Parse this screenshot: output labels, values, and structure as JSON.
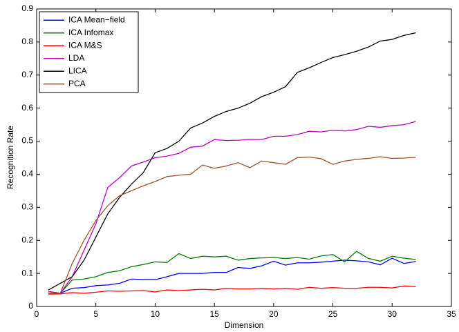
{
  "chart_data": {
    "type": "line",
    "xlabel": "Dimension",
    "ylabel": "Recognition Rate",
    "x": [
      1,
      2,
      3,
      4,
      5,
      6,
      7,
      8,
      9,
      10,
      11,
      12,
      13,
      14,
      15,
      16,
      17,
      18,
      19,
      20,
      21,
      22,
      23,
      24,
      25,
      26,
      27,
      28,
      29,
      30,
      31,
      32
    ],
    "series": [
      {
        "name": "ICA Mean−field",
        "color": "#0000ff",
        "values": [
          0.045,
          0.04,
          0.055,
          0.057,
          0.063,
          0.065,
          0.07,
          0.083,
          0.081,
          0.081,
          0.09,
          0.1,
          0.1,
          0.1,
          0.103,
          0.103,
          0.118,
          0.115,
          0.123,
          0.137,
          0.125,
          0.132,
          0.132,
          0.134,
          0.137,
          0.14,
          0.138,
          0.135,
          0.126,
          0.146,
          0.13,
          0.136
        ]
      },
      {
        "name": "ICA Infomax",
        "color": "#008000",
        "values": [
          0.045,
          0.04,
          0.08,
          0.083,
          0.09,
          0.103,
          0.108,
          0.12,
          0.127,
          0.135,
          0.133,
          0.16,
          0.145,
          0.152,
          0.15,
          0.152,
          0.14,
          0.145,
          0.147,
          0.148,
          0.145,
          0.148,
          0.143,
          0.153,
          0.157,
          0.135,
          0.167,
          0.145,
          0.137,
          0.152,
          0.146,
          0.142
        ]
      },
      {
        "name": "ICA M&S",
        "color": "#ff0000",
        "values": [
          0.037,
          0.038,
          0.042,
          0.04,
          0.043,
          0.047,
          0.046,
          0.047,
          0.048,
          0.044,
          0.05,
          0.048,
          0.05,
          0.052,
          0.05,
          0.055,
          0.053,
          0.053,
          0.055,
          0.053,
          0.055,
          0.052,
          0.058,
          0.055,
          0.057,
          0.055,
          0.055,
          0.058,
          0.058,
          0.056,
          0.062,
          0.06
        ]
      },
      {
        "name": "LDA",
        "color": "#c000c0",
        "values": [
          0.045,
          0.04,
          0.09,
          0.17,
          0.25,
          0.36,
          0.39,
          0.425,
          0.437,
          0.45,
          0.455,
          0.463,
          0.482,
          0.485,
          0.505,
          0.502,
          0.503,
          0.505,
          0.505,
          0.515,
          0.515,
          0.52,
          0.53,
          0.528,
          0.533,
          0.531,
          0.535,
          0.545,
          0.542,
          0.547,
          0.55,
          0.56
        ]
      },
      {
        "name": "LICA",
        "color": "#000000",
        "values": [
          0.05,
          0.07,
          0.09,
          0.14,
          0.21,
          0.28,
          0.33,
          0.37,
          0.405,
          0.465,
          0.478,
          0.5,
          0.54,
          0.555,
          0.575,
          0.59,
          0.6,
          0.615,
          0.635,
          0.648,
          0.665,
          0.708,
          0.722,
          0.738,
          0.753,
          0.762,
          0.772,
          0.785,
          0.803,
          0.808,
          0.82,
          0.828
        ]
      },
      {
        "name": "PCA",
        "color": "#a0522d",
        "values": [
          0.04,
          0.04,
          0.13,
          0.2,
          0.26,
          0.305,
          0.335,
          0.35,
          0.365,
          0.378,
          0.393,
          0.397,
          0.4,
          0.428,
          0.418,
          0.425,
          0.435,
          0.42,
          0.44,
          0.435,
          0.43,
          0.45,
          0.452,
          0.447,
          0.43,
          0.44,
          0.445,
          0.448,
          0.453,
          0.448,
          0.449,
          0.451
        ]
      }
    ],
    "xlim": [
      0,
      35
    ],
    "xticks": [
      0,
      5,
      10,
      15,
      20,
      25,
      30,
      35
    ],
    "ylim": [
      0,
      0.9
    ],
    "yticks": [
      0,
      0.1,
      0.2,
      0.3,
      0.4,
      0.5,
      0.6,
      0.7,
      0.8,
      0.9
    ],
    "legend": "upper-left",
    "grid": false
  }
}
